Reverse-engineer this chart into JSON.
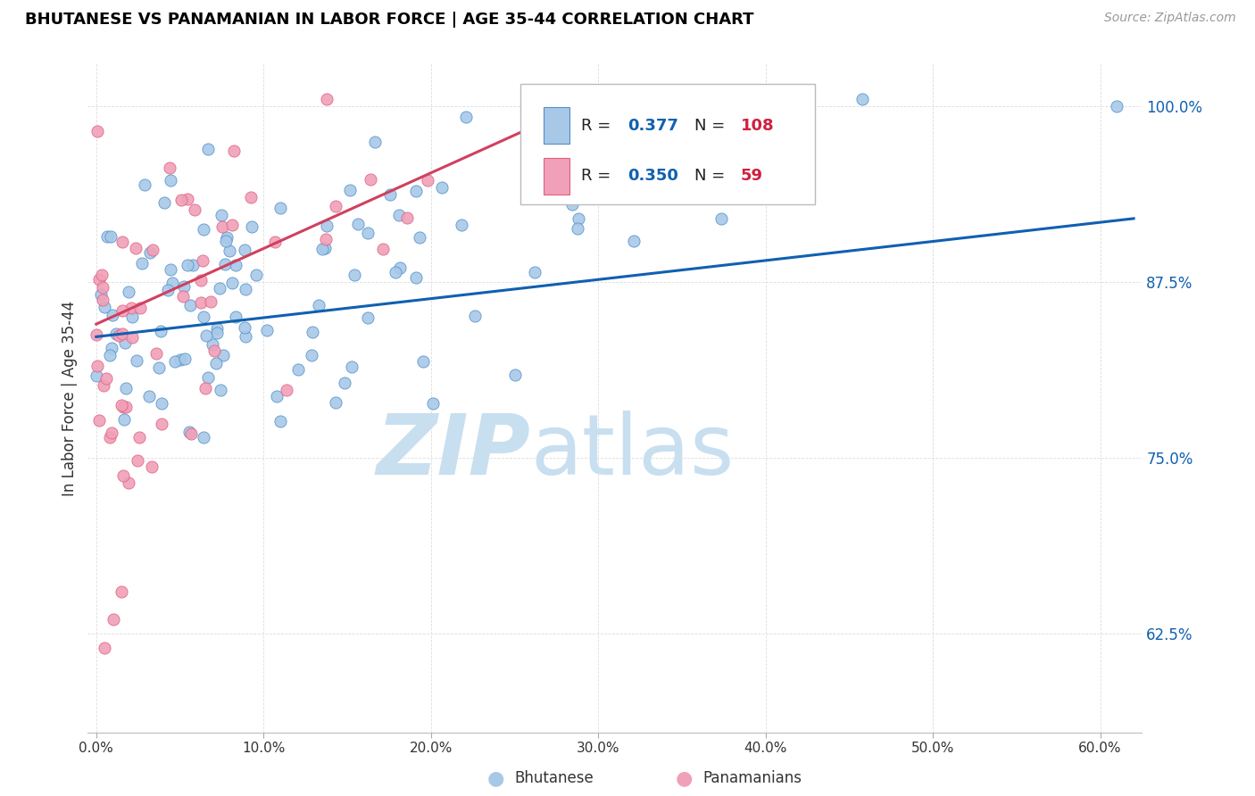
{
  "title": "BHUTANESE VS PANAMANIAN IN LABOR FORCE | AGE 35-44 CORRELATION CHART",
  "source": "Source: ZipAtlas.com",
  "ylabel": "In Labor Force | Age 35-44",
  "blue_R": 0.377,
  "blue_N": 108,
  "pink_R": 0.35,
  "pink_N": 59,
  "blue_color": "#a8c8e8",
  "pink_color": "#f0a0b8",
  "blue_edge_color": "#5090c8",
  "pink_edge_color": "#e06080",
  "blue_line_color": "#1060b0",
  "pink_line_color": "#d04060",
  "legend_val_color": "#1060b0",
  "legend_n_color": "#d02040",
  "watermark_zip_color": "#c8dff0",
  "watermark_atlas_color": "#c8dff0",
  "background_color": "#ffffff",
  "grid_color": "#dddddd",
  "xlim": [
    -0.005,
    0.625
  ],
  "ylim": [
    0.555,
    1.03
  ],
  "x_ticks": [
    0.0,
    0.1,
    0.2,
    0.3,
    0.4,
    0.5,
    0.6
  ],
  "y_ticks": [
    0.625,
    0.75,
    0.875,
    1.0
  ],
  "blue_trend_x0": 0.0,
  "blue_trend_x1": 0.62,
  "blue_trend_y0": 0.836,
  "blue_trend_y1": 0.92,
  "pink_trend_x0": 0.0,
  "pink_trend_x1": 0.27,
  "pink_trend_y0": 0.845,
  "pink_trend_y1": 0.99
}
